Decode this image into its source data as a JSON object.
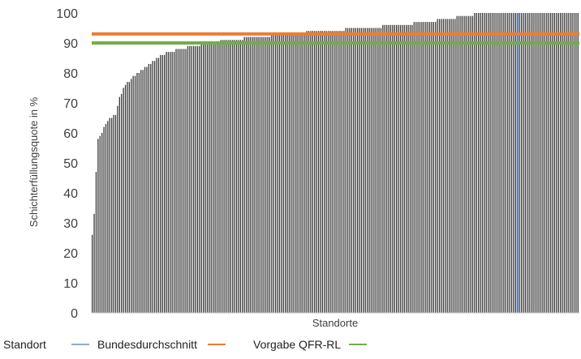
{
  "chart_data": {
    "type": "bar",
    "title": "",
    "xlabel": "Standorte",
    "ylabel": "Schichterfüllungsquote in %",
    "ylim": [
      0,
      100
    ],
    "yticks": [
      0,
      10,
      20,
      30,
      40,
      50,
      60,
      70,
      80,
      90,
      100
    ],
    "grid": false,
    "legend_position": "bottom-left",
    "bar_count": 250,
    "bar_color": "#3a3a3a",
    "bar_profile": [
      [
        0,
        26
      ],
      [
        1,
        33
      ],
      [
        2,
        47
      ],
      [
        3,
        58
      ],
      [
        5,
        60
      ],
      [
        7,
        63
      ],
      [
        9,
        65
      ],
      [
        12,
        66
      ],
      [
        14,
        72
      ],
      [
        17,
        76
      ],
      [
        20,
        78
      ],
      [
        24,
        80
      ],
      [
        28,
        82
      ],
      [
        32,
        84
      ],
      [
        36,
        86
      ],
      [
        40,
        87
      ],
      [
        46,
        88
      ],
      [
        52,
        89
      ],
      [
        60,
        90
      ],
      [
        72,
        91
      ],
      [
        84,
        92
      ],
      [
        100,
        93
      ],
      [
        120,
        94
      ],
      [
        140,
        95
      ],
      [
        158,
        96
      ],
      [
        172,
        97
      ],
      [
        182,
        98
      ],
      [
        192,
        99
      ],
      [
        200,
        100
      ],
      [
        249,
        100
      ]
    ],
    "series": [
      {
        "name": "Standort",
        "color": "#3a3a3a"
      },
      {
        "name": "Bundesdurchschnitt",
        "color": "#4472c4",
        "x_index": 218
      },
      {
        "name": "Vorgabe QFR-RL",
        "color": "#70ad47",
        "y": 90
      }
    ],
    "reference_lines": [
      {
        "color": "#ed7d31",
        "y": 93
      },
      {
        "color": "#70ad47",
        "y": 90
      }
    ]
  }
}
